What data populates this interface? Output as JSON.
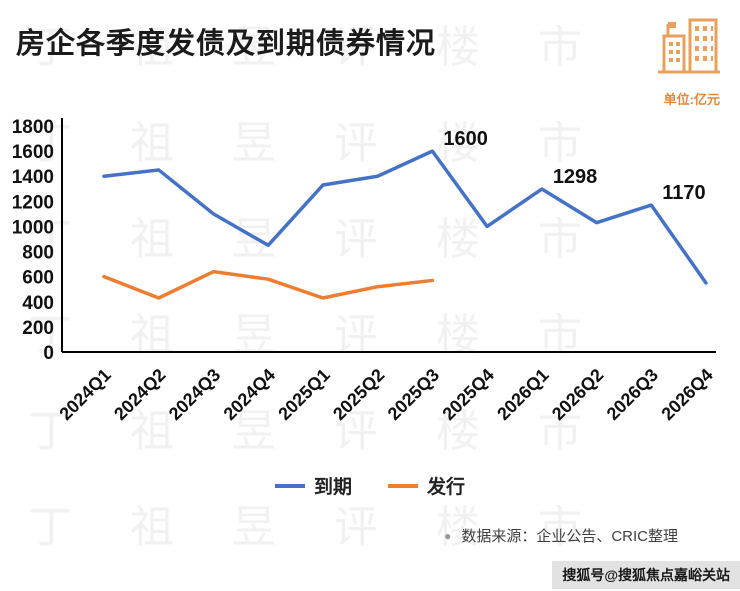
{
  "header": {
    "title": "房企各季度发债及到期债券情况"
  },
  "unit_label": "单位:亿元",
  "chart_data": {
    "type": "line",
    "categories": [
      "2024Q1",
      "2024Q2",
      "2024Q3",
      "2024Q4",
      "2025Q1",
      "2025Q2",
      "2025Q3",
      "2025Q4",
      "2026Q1",
      "2026Q2",
      "2026Q3",
      "2026Q4"
    ],
    "series": [
      {
        "name": "到期",
        "color": "#4472c4",
        "values": [
          1400,
          1450,
          1100,
          850,
          1330,
          1400,
          1600,
          1000,
          1298,
          1030,
          1170,
          550
        ]
      },
      {
        "name": "发行",
        "color": "#ed7d31",
        "values": [
          600,
          430,
          640,
          580,
          430,
          520,
          570,
          null,
          null,
          null,
          null,
          null
        ]
      }
    ],
    "title": "房企各季度发债及到期债券情况",
    "xlabel": "",
    "ylabel": "亿元",
    "ylim": [
      0,
      1800
    ],
    "ytick_step": 200,
    "grid": false,
    "legend_position": "bottom",
    "annotations": [
      {
        "series": 0,
        "index": 6,
        "text": "1600"
      },
      {
        "series": 0,
        "index": 8,
        "text": "1298"
      },
      {
        "series": 0,
        "index": 10,
        "text": "1170"
      }
    ]
  },
  "footer": {
    "bullet": "●",
    "source": "数据来源：企业公告、CRIC整理"
  },
  "watermark": {
    "bottom_right": "搜狐号@搜狐焦点嘉峪关站",
    "background_text": "丁祖昱评楼市"
  }
}
